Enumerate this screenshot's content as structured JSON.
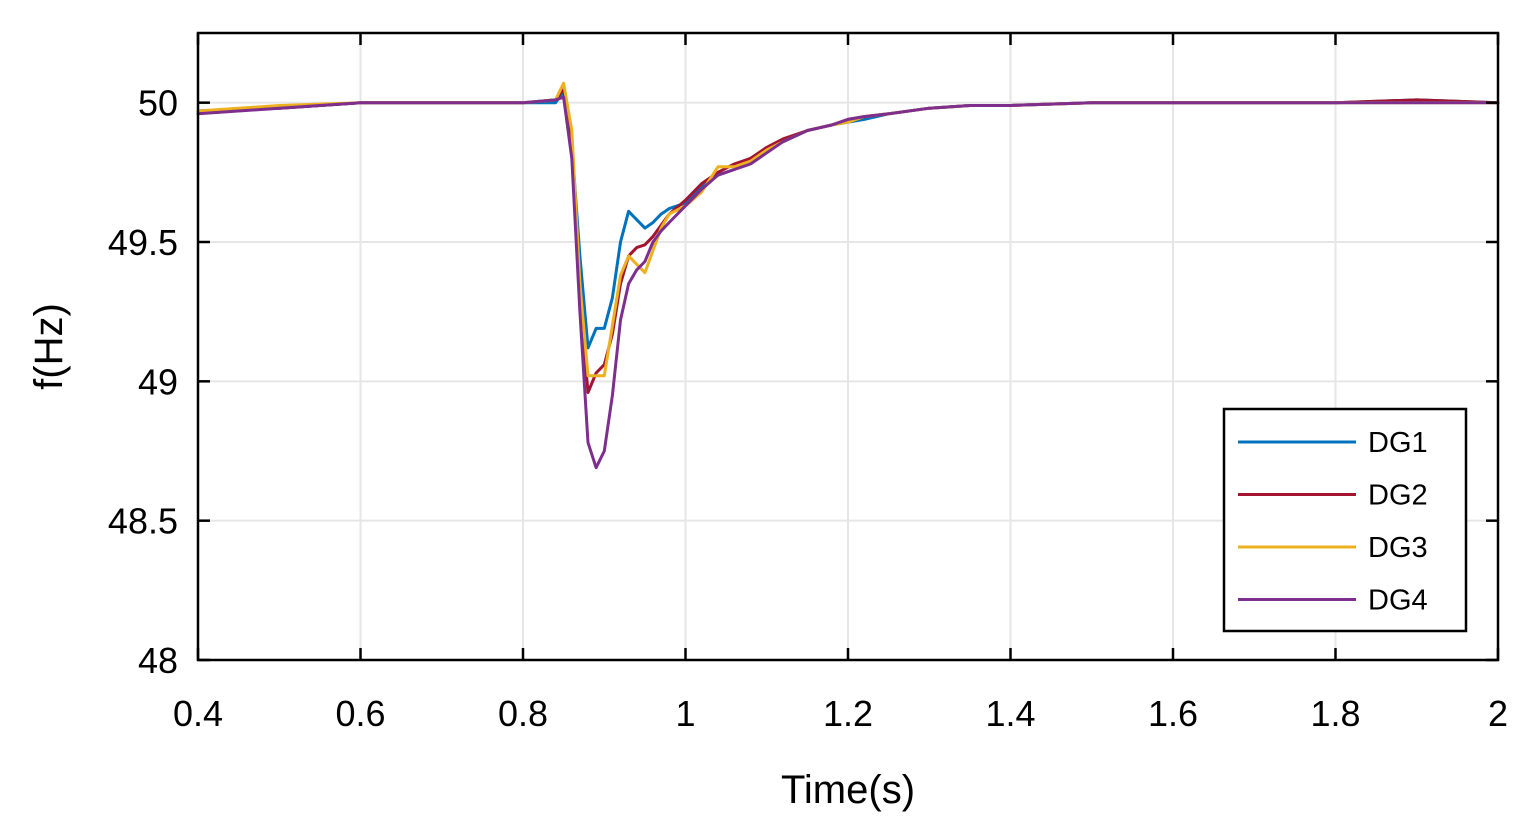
{
  "chart_data": {
    "type": "line",
    "title": "",
    "xlabel": "Time(s)",
    "ylabel": "f(Hz)",
    "xlim": [
      0.4,
      2.0
    ],
    "ylim": [
      48,
      50.25
    ],
    "xticks": [
      0.4,
      0.6,
      0.8,
      1.0,
      1.2,
      1.4,
      1.6,
      1.8,
      2.0
    ],
    "xtick_labels": [
      "0.4",
      "0.6",
      "0.8",
      "1",
      "1.2",
      "1.4",
      "1.6",
      "1.8",
      "2"
    ],
    "yticks": [
      48,
      48.5,
      49,
      49.5,
      50
    ],
    "ytick_labels": [
      "48",
      "48.5",
      "49",
      "49.5",
      "50"
    ],
    "grid": true,
    "legend_position": "bottom-right",
    "series": [
      {
        "name": "DG1",
        "color": "#0072BD",
        "x": [
          0.4,
          0.5,
          0.6,
          0.7,
          0.8,
          0.84,
          0.85,
          0.86,
          0.87,
          0.88,
          0.89,
          0.9,
          0.91,
          0.92,
          0.93,
          0.94,
          0.95,
          0.96,
          0.97,
          0.98,
          1.0,
          1.02,
          1.04,
          1.06,
          1.08,
          1.1,
          1.12,
          1.15,
          1.18,
          1.2,
          1.22,
          1.25,
          1.3,
          1.35,
          1.4,
          1.5,
          1.6,
          1.8,
          1.9,
          2.0
        ],
        "y": [
          49.97,
          49.98,
          50.0,
          50.0,
          50.0,
          50.0,
          50.04,
          49.85,
          49.45,
          49.12,
          49.19,
          49.19,
          49.3,
          49.5,
          49.61,
          49.58,
          49.55,
          49.57,
          49.6,
          49.62,
          49.64,
          49.7,
          49.74,
          49.76,
          49.8,
          49.83,
          49.86,
          49.9,
          49.92,
          49.93,
          49.94,
          49.96,
          49.98,
          49.99,
          49.99,
          50.0,
          50.0,
          50.0,
          50.01,
          50.0
        ]
      },
      {
        "name": "DG2",
        "color": "#A2142F",
        "x": [
          0.4,
          0.5,
          0.6,
          0.7,
          0.8,
          0.84,
          0.85,
          0.86,
          0.87,
          0.88,
          0.89,
          0.9,
          0.91,
          0.92,
          0.93,
          0.94,
          0.95,
          0.96,
          0.97,
          0.98,
          1.0,
          1.02,
          1.04,
          1.06,
          1.08,
          1.1,
          1.12,
          1.15,
          1.18,
          1.2,
          1.22,
          1.25,
          1.3,
          1.35,
          1.4,
          1.5,
          1.6,
          1.8,
          1.9,
          2.0
        ],
        "y": [
          49.97,
          49.98,
          50.0,
          50.0,
          50.0,
          50.01,
          50.05,
          49.85,
          49.3,
          48.96,
          49.03,
          49.06,
          49.17,
          49.35,
          49.45,
          49.48,
          49.49,
          49.52,
          49.56,
          49.6,
          49.65,
          49.71,
          49.75,
          49.78,
          49.8,
          49.84,
          49.87,
          49.9,
          49.92,
          49.94,
          49.95,
          49.96,
          49.98,
          49.99,
          49.99,
          50.0,
          50.0,
          50.0,
          50.01,
          50.0
        ]
      },
      {
        "name": "DG3",
        "color": "#EDB120",
        "x": [
          0.4,
          0.5,
          0.6,
          0.7,
          0.8,
          0.84,
          0.85,
          0.86,
          0.87,
          0.88,
          0.89,
          0.9,
          0.91,
          0.92,
          0.93,
          0.94,
          0.95,
          0.96,
          0.97,
          0.98,
          1.0,
          1.02,
          1.04,
          1.06,
          1.08,
          1.1,
          1.12,
          1.15,
          1.18,
          1.2,
          1.22,
          1.25,
          1.3,
          1.35,
          1.4,
          1.5,
          1.6,
          1.8,
          1.9,
          2.0
        ],
        "y": [
          49.97,
          49.99,
          50.0,
          50.0,
          50.0,
          50.01,
          50.07,
          49.9,
          49.35,
          49.02,
          49.02,
          49.02,
          49.2,
          49.38,
          49.45,
          49.42,
          49.39,
          49.47,
          49.55,
          49.6,
          49.63,
          49.68,
          49.77,
          49.77,
          49.79,
          49.83,
          49.86,
          49.9,
          49.92,
          49.93,
          49.95,
          49.96,
          49.98,
          49.99,
          49.99,
          50.0,
          50.0,
          50.0,
          50.0,
          50.0
        ]
      },
      {
        "name": "DG4",
        "color": "#7E2F8E",
        "x": [
          0.4,
          0.5,
          0.6,
          0.7,
          0.8,
          0.84,
          0.85,
          0.86,
          0.87,
          0.88,
          0.89,
          0.9,
          0.91,
          0.92,
          0.93,
          0.94,
          0.95,
          0.96,
          0.97,
          0.98,
          1.0,
          1.02,
          1.04,
          1.06,
          1.08,
          1.1,
          1.12,
          1.15,
          1.18,
          1.2,
          1.22,
          1.25,
          1.3,
          1.35,
          1.4,
          1.5,
          1.6,
          1.8,
          1.9,
          2.0
        ],
        "y": [
          49.96,
          49.98,
          50.0,
          50.0,
          50.0,
          50.01,
          50.02,
          49.8,
          49.25,
          48.78,
          48.69,
          48.75,
          48.95,
          49.22,
          49.35,
          49.4,
          49.43,
          49.5,
          49.54,
          49.57,
          49.63,
          49.69,
          49.74,
          49.76,
          49.78,
          49.82,
          49.86,
          49.9,
          49.92,
          49.94,
          49.95,
          49.96,
          49.98,
          49.99,
          49.99,
          50.0,
          50.0,
          50.0,
          50.0,
          50.0
        ]
      }
    ]
  }
}
